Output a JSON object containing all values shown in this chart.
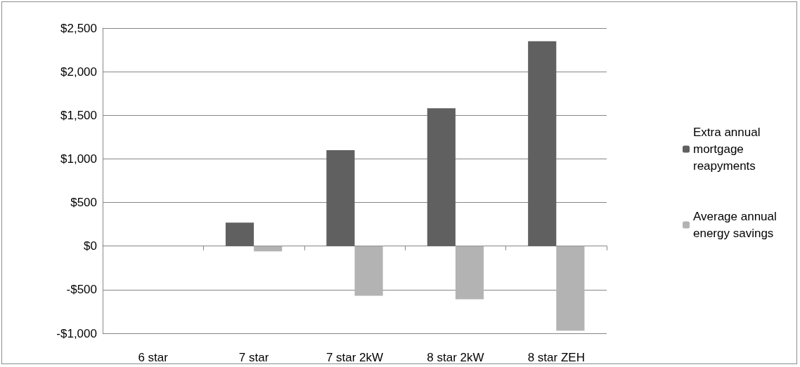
{
  "chart_data": {
    "type": "bar",
    "categories": [
      "6 star",
      "7 star",
      "7 star 2kW",
      "8 star 2kW",
      "8 star ZEH"
    ],
    "series": [
      {
        "name": "Extra annual mortgage reapyments",
        "color": "#606060",
        "values": [
          0,
          270,
          1100,
          1580,
          2350
        ]
      },
      {
        "name": "Average annual energy savings",
        "color": "#b3b3b3",
        "values": [
          0,
          -60,
          -570,
          -610,
          -970
        ]
      }
    ],
    "ylim": [
      -1000,
      2500
    ],
    "yticks": [
      {
        "value": -1000,
        "label": "-$1,000"
      },
      {
        "value": -500,
        "label": "-$500"
      },
      {
        "value": 0,
        "label": "$0"
      },
      {
        "value": 500,
        "label": "$500"
      },
      {
        "value": 1000,
        "label": "$1,000"
      },
      {
        "value": 1500,
        "label": "$1,500"
      },
      {
        "value": 2000,
        "label": "$2,000"
      },
      {
        "value": 2500,
        "label": "$2,500"
      }
    ],
    "grid": "y",
    "legend": "right"
  }
}
